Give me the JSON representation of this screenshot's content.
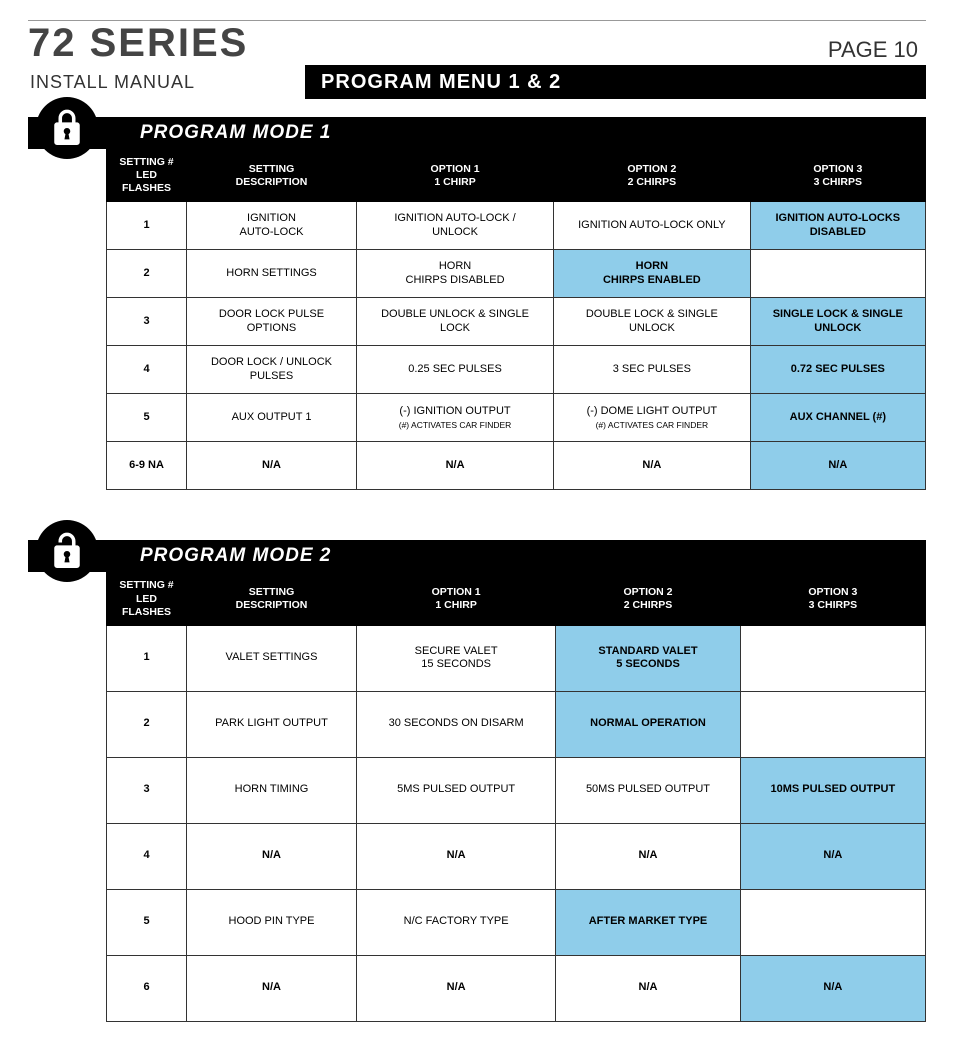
{
  "header": {
    "series_title": "72 SERIES",
    "page_label": "PAGE 10",
    "install_manual": "INSTALL  MANUAL",
    "banner": "PROGRAM MENU 1 & 2"
  },
  "mode1": {
    "title": "PROGRAM MODE 1",
    "headers": {
      "c1a": "SETTING #",
      "c1b": "LED",
      "c1c": "FLASHES",
      "c2a": "SETTING",
      "c2b": "DESCRIPTION",
      "c3a": "OPTION 1",
      "c3b": "1 CHIRP",
      "c4a": "OPTION 2",
      "c4b": "2 CHIRPS",
      "c5a": "OPTION 3",
      "c5b": "3 CHIRPS"
    },
    "rows": [
      {
        "n": "1",
        "desc": "IGNITION\nAUTO-LOCK",
        "o1": "IGNITION AUTO-LOCK /\nUNLOCK",
        "o2": "IGNITION AUTO-LOCK ONLY",
        "o3": "IGNITION AUTO-LOCKS\nDISABLED",
        "hl": 3
      },
      {
        "n": "2",
        "desc": "HORN SETTINGS",
        "o1": "HORN\nCHIRPS DISABLED",
        "o2": "HORN\nCHIRPS ENABLED",
        "o3": "",
        "hl": 2
      },
      {
        "n": "3",
        "desc": "DOOR LOCK PULSE\nOPTIONS",
        "o1": "DOUBLE UNLOCK & SINGLE\nLOCK",
        "o2": "DOUBLE LOCK & SINGLE\nUNLOCK",
        "o3": "SINGLE LOCK & SINGLE\nUNLOCK",
        "hl": 3
      },
      {
        "n": "4",
        "desc": "DOOR LOCK / UNLOCK\nPULSES",
        "o1": "0.25 SEC PULSES",
        "o2": "3 SEC PULSES",
        "o3": "0.72 SEC PULSES",
        "hl": 3
      },
      {
        "n": "5",
        "desc": "AUX OUTPUT 1",
        "o1": "(-) IGNITION OUTPUT",
        "o1s": "(#) ACTIVATES CAR FINDER",
        "o2": "(-) DOME LIGHT OUTPUT",
        "o2s": "(#) ACTIVATES CAR FINDER",
        "o3": "AUX CHANNEL (#)",
        "hl": 3
      },
      {
        "n": "6-9 NA",
        "desc": "N/A",
        "o1": "N/A",
        "o2": "N/A",
        "o3": "N/A",
        "hl": 3,
        "allbold": true
      }
    ]
  },
  "mode2": {
    "title": "PROGRAM MODE 2",
    "headers": {
      "c1a": "SETTING #",
      "c1b": "LED",
      "c1c": "FLASHES",
      "c2a": "SETTING",
      "c2b": "DESCRIPTION",
      "c3a": "OPTION 1",
      "c3b": "1 CHIRP",
      "c4a": "OPTION 2",
      "c4b": "2 CHIRPS",
      "c5a": "OPTION 3",
      "c5b": "3 CHIRPS"
    },
    "rows": [
      {
        "n": "1",
        "desc": "VALET SETTINGS",
        "o1": "SECURE VALET\n15 SECONDS",
        "o2": "STANDARD VALET\n5 SECONDS",
        "o3": "",
        "hl": 2
      },
      {
        "n": "2",
        "desc": "PARK LIGHT OUTPUT",
        "o1": "30 SECONDS ON DISARM",
        "o2": "NORMAL OPERATION",
        "o3": "",
        "hl": 2
      },
      {
        "n": "3",
        "desc": "HORN TIMING",
        "o1": "5MS PULSED OUTPUT",
        "o2": "50MS PULSED OUTPUT",
        "o3": "10MS PULSED OUTPUT",
        "hl": 3
      },
      {
        "n": "4",
        "desc": "N/A",
        "o1": "N/A",
        "o2": "N/A",
        "o3": "N/A",
        "hl": 3,
        "allbold": true
      },
      {
        "n": "5",
        "desc": "HOOD PIN TYPE",
        "o1": "N/C FACTORY TYPE",
        "o2": "AFTER MARKET TYPE",
        "o3": "",
        "hl": 2
      },
      {
        "n": "6",
        "desc": "N/A",
        "o1": "N/A",
        "o2": "N/A",
        "o3": "N/A",
        "hl": 3,
        "allbold": true
      }
    ]
  },
  "style": {
    "highlight_color": "#8fcdea",
    "header_bg": "#000000",
    "header_fg": "#ffffff",
    "border_color": "#333333",
    "body_bg": "#ffffff"
  }
}
